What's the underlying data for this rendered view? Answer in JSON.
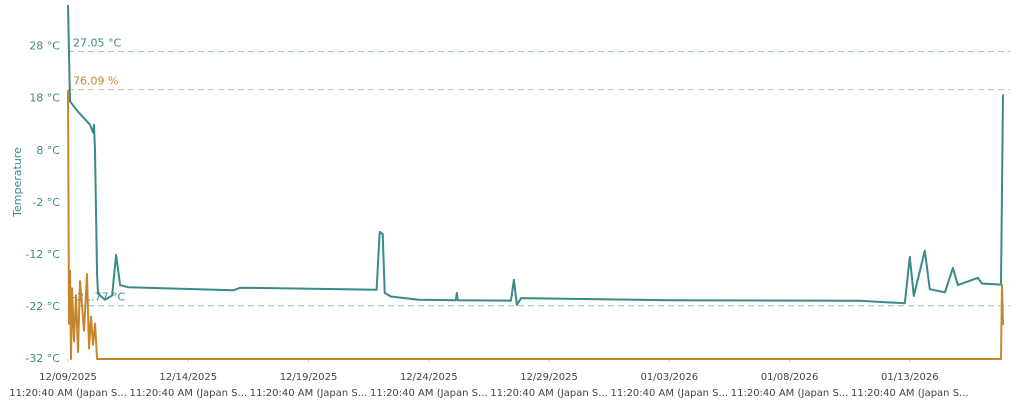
{
  "chart_data": {
    "type": "line",
    "y_label": "Temperature",
    "ylim": [
      -32,
      36
    ],
    "yticks": [
      {
        "value": -32,
        "label": "-32 °C"
      },
      {
        "value": -22,
        "label": "-22 °C"
      },
      {
        "value": -12,
        "label": "-12 °C"
      },
      {
        "value": -2,
        "label": "-2 °C"
      },
      {
        "value": 8,
        "label": "8 °C"
      },
      {
        "value": 18,
        "label": "18 °C"
      },
      {
        "value": 28,
        "label": "28 °C"
      }
    ],
    "y2lim": [
      0,
      100
    ],
    "xlim": [
      "2025-12-09T11:20:40",
      "2026-01-17T15:20:40"
    ],
    "xticks": [
      {
        "value": "2025-12-09T11:20:40",
        "label": "12/09/2025"
      },
      {
        "value": "2025-12-14T11:20:40",
        "label": "12/14/2025"
      },
      {
        "value": "2025-12-19T11:20:40",
        "label": "12/19/2025"
      },
      {
        "value": "2025-12-24T11:20:40",
        "label": "12/24/2025"
      },
      {
        "value": "2025-12-29T11:20:40",
        "label": "12/29/2025"
      },
      {
        "value": "2026-01-03T11:20:40",
        "label": "01/03/2026"
      },
      {
        "value": "2026-01-08T11:20:40",
        "label": "01/08/2026"
      },
      {
        "value": "2026-01-13T11:20:40",
        "label": "01/13/2026"
      }
    ],
    "xtick_sublabel": "11:20:40 AM (Japan S...",
    "reference_lines": [
      {
        "value": 27.05,
        "label": "27.05 °C",
        "color": "#3a8a8a"
      },
      {
        "value": 76.09,
        "label": "76.09 %",
        "axis": "y2",
        "color": "#c8862c"
      },
      {
        "value": -21.77,
        "label": "-21.77 °C",
        "color": "#3a8a8a"
      }
    ],
    "series": [
      {
        "color": "#3a8a8a",
        "x": [
          "2025-12-09T11:20",
          "2025-12-09T13:20",
          "2025-12-09T21:20",
          "2025-12-10T09:20",
          "2025-12-10T12:20",
          "2025-12-10T13:20",
          "2025-12-10T14:20",
          "2025-12-10T16:20",
          "2025-12-10T17:20",
          "2025-12-11T00:20",
          "2025-12-11T07:20",
          "2025-12-11T11:20",
          "2025-12-11T15:20",
          "2025-12-11T23:20",
          "2025-12-16T08:20",
          "2025-12-16T15:20",
          "2025-12-22T07:20",
          "2025-12-22T10:20",
          "2025-12-22T13:20",
          "2025-12-22T15:20",
          "2025-12-22T21:20",
          "2025-12-24T01:20",
          "2025-12-25T14:20",
          "2025-12-25T15:20",
          "2025-12-25T16:20",
          "2025-12-27T21:20",
          "2025-12-28T00:20",
          "2025-12-28T03:20",
          "2025-12-28T07:20",
          "2026-01-03T11:20",
          "2026-01-11T09:20",
          "2026-01-13T06:20",
          "2026-01-13T11:20",
          "2026-01-13T15:20",
          "2026-01-14T02:20",
          "2026-01-14T07:20",
          "2026-01-14T22:20",
          "2026-01-15T06:20",
          "2026-01-15T11:20",
          "2026-01-16T07:20",
          "2026-01-16T11:20",
          "2026-01-17T06:20",
          "2026-01-17T08:20"
        ],
        "values": [
          36,
          17.5,
          15.5,
          13,
          11.5,
          13,
          8,
          -16,
          -19.5,
          -20.6,
          -19.8,
          -12,
          -17.8,
          -18.2,
          -18.8,
          -18.3,
          -18.7,
          -7.6,
          -8,
          -19.3,
          -20,
          -20.6,
          -20.7,
          -19.3,
          -20.7,
          -20.8,
          -16.8,
          -21.6,
          -20.3,
          -20.7,
          -20.8,
          -21.3,
          -12.4,
          -19.9,
          -11.2,
          -18.6,
          -19.2,
          -14.5,
          -17.8,
          -16.4,
          -17.5,
          -17.7,
          18.8
        ]
      },
      {
        "color": "#c8862c",
        "axis": "y2",
        "x": [
          "2025-12-09T11:20",
          "2025-12-09T12:20",
          "2025-12-09T13:20",
          "2025-12-09T14:20",
          "2025-12-09T15:20",
          "2025-12-09T17:20",
          "2025-12-09T19:20",
          "2025-12-09T21:20",
          "2025-12-09T23:20",
          "2025-12-10T03:20",
          "2025-12-10T06:20",
          "2025-12-10T08:20",
          "2025-12-10T10:20",
          "2025-12-10T12:20",
          "2025-12-10T14:20",
          "2025-12-10T16:20",
          "2026-01-17T06:20",
          "2026-01-17T07:20",
          "2026-01-17T08:20"
        ],
        "values": [
          76,
          10,
          25,
          0,
          20,
          5,
          18,
          2,
          22,
          8,
          24,
          3,
          12,
          4,
          10,
          0,
          0,
          21,
          9.6
        ]
      }
    ]
  }
}
